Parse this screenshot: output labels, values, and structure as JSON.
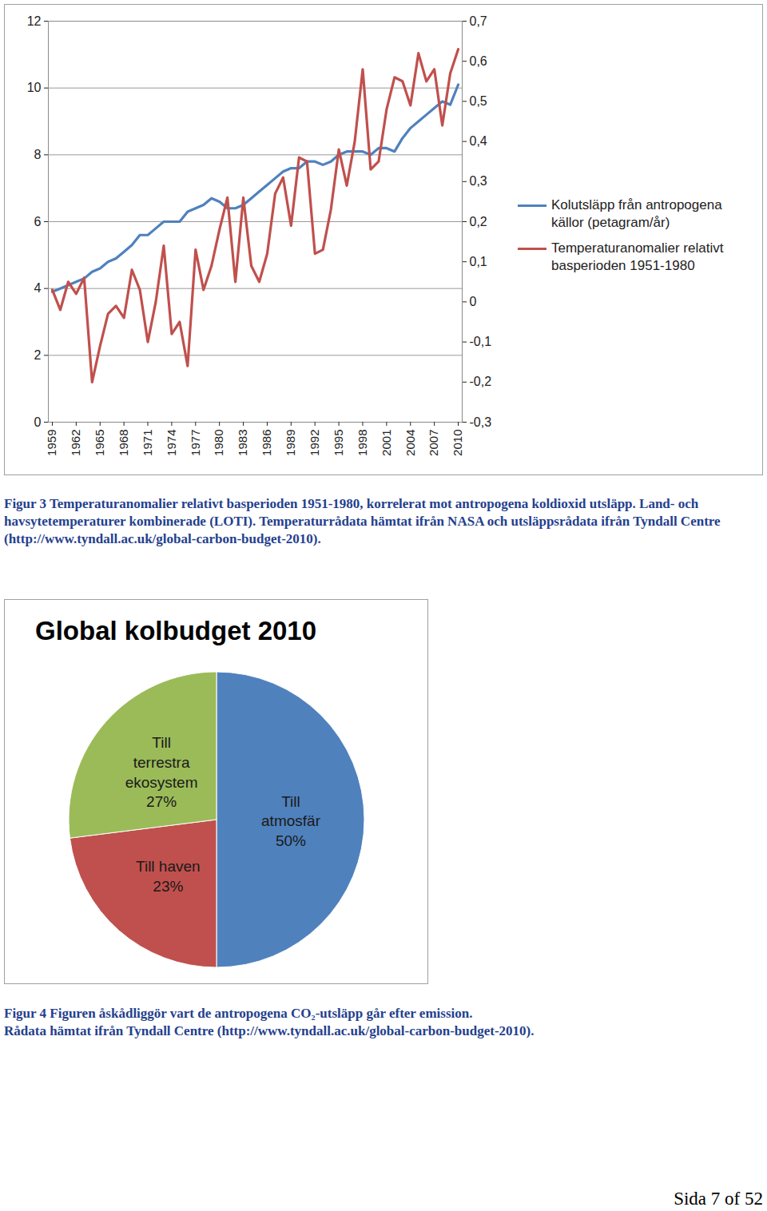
{
  "chart_data": [
    {
      "type": "line",
      "x": [
        1959,
        1960,
        1961,
        1962,
        1963,
        1964,
        1965,
        1966,
        1967,
        1968,
        1969,
        1970,
        1971,
        1972,
        1973,
        1974,
        1975,
        1976,
        1977,
        1978,
        1979,
        1980,
        1981,
        1982,
        1983,
        1984,
        1985,
        1986,
        1987,
        1988,
        1989,
        1990,
        1991,
        1992,
        1993,
        1994,
        1995,
        1996,
        1997,
        1998,
        1999,
        2000,
        2001,
        2002,
        2003,
        2004,
        2005,
        2006,
        2007,
        2008,
        2009,
        2010
      ],
      "xlim": [
        1958.5,
        2010.5
      ],
      "xticks": [
        1959,
        1962,
        1965,
        1968,
        1971,
        1974,
        1977,
        1980,
        1983,
        1986,
        1989,
        1992,
        1995,
        1998,
        2001,
        2004,
        2007,
        2010
      ],
      "ylim": [
        0,
        12
      ],
      "yticks": [
        0,
        2,
        4,
        6,
        8,
        10,
        12
      ],
      "y2lim": [
        -0.3,
        0.7
      ],
      "y2ticks": [
        {
          "value": -0.3,
          "label": "-0,3"
        },
        {
          "value": -0.2,
          "label": "-0,2"
        },
        {
          "value": -0.1,
          "label": "-0,1"
        },
        0,
        {
          "value": 0.1,
          "label": "0,1"
        },
        {
          "value": 0.2,
          "label": "0,2"
        },
        {
          "value": 0.3,
          "label": "0,3"
        },
        {
          "value": 0.4,
          "label": "0,4"
        },
        {
          "value": 0.5,
          "label": "0,5"
        },
        {
          "value": 0.6,
          "label": "0,6"
        },
        {
          "value": 0.7,
          "label": "0,7"
        }
      ],
      "grid": true,
      "legend": "right",
      "series": [
        {
          "name": "Kolutsläpp från antropogena källor (petagram/år)",
          "color": "#4f81bd",
          "values": [
            3.9,
            4.0,
            4.1,
            4.2,
            4.3,
            4.5,
            4.6,
            4.8,
            4.9,
            5.1,
            5.3,
            5.6,
            5.6,
            5.8,
            6.0,
            6.0,
            6.0,
            6.3,
            6.4,
            6.5,
            6.7,
            6.6,
            6.4,
            6.4,
            6.5,
            6.7,
            6.9,
            7.1,
            7.3,
            7.5,
            7.6,
            7.6,
            7.8,
            7.8,
            7.7,
            7.8,
            8.0,
            8.1,
            8.1,
            8.1,
            8.0,
            8.2,
            8.2,
            8.1,
            8.5,
            8.8,
            9.0,
            9.2,
            9.4,
            9.6,
            9.5,
            10.1
          ]
        },
        {
          "name": "Temperaturanomalier relativt basperioden 1951-1980",
          "color": "#c0504d",
          "axis": "y2",
          "values": [
            0.03,
            -0.02,
            0.05,
            0.02,
            0.06,
            -0.2,
            -0.11,
            -0.03,
            -0.01,
            -0.04,
            0.08,
            0.03,
            -0.1,
            0.0,
            0.14,
            -0.08,
            -0.05,
            -0.16,
            0.13,
            0.03,
            0.09,
            0.18,
            0.26,
            0.05,
            0.26,
            0.09,
            0.05,
            0.12,
            0.27,
            0.31,
            0.19,
            0.36,
            0.35,
            0.12,
            0.13,
            0.23,
            0.38,
            0.29,
            0.4,
            0.58,
            0.33,
            0.35,
            0.48,
            0.56,
            0.55,
            0.49,
            0.62,
            0.55,
            0.58,
            0.44,
            0.57,
            0.63
          ]
        }
      ]
    },
    {
      "type": "pie",
      "title": "Global kolbudget 2010",
      "categories": [
        "Till atmosfär",
        "Till haven",
        "Till terrestra ekosystem"
      ],
      "values": [
        50,
        23,
        27
      ],
      "value_labels": [
        "50%",
        "23%",
        "27%"
      ],
      "colors": [
        "#4f81bd",
        "#c0504d",
        "#9bbb59"
      ],
      "data_labels": true
    }
  ],
  "captions": [
    [
      "Figur 3 Temperaturanomalier relativt basperioden 1951-1980, korrelerat mot antropogena koldioxid utsläpp. Land- och havsytetemperaturer kombinerade (LOTI). Temperaturrådata hämtat ifrån NASA och utsläppsrådata ifrån Tyndall Centre (http://www.tyndall.ac.uk/global-carbon-budget-2010)."
    ],
    [
      "Figur 4 Figuren åskådliggör vart de antropogena CO₂-utsläpp går efter emission.",
      "Rådata hämtat ifrån Tyndall Centre (http://www.tyndall.ac.uk/global-carbon-budget-2010)."
    ]
  ],
  "footer": "Sida 7 of 52"
}
